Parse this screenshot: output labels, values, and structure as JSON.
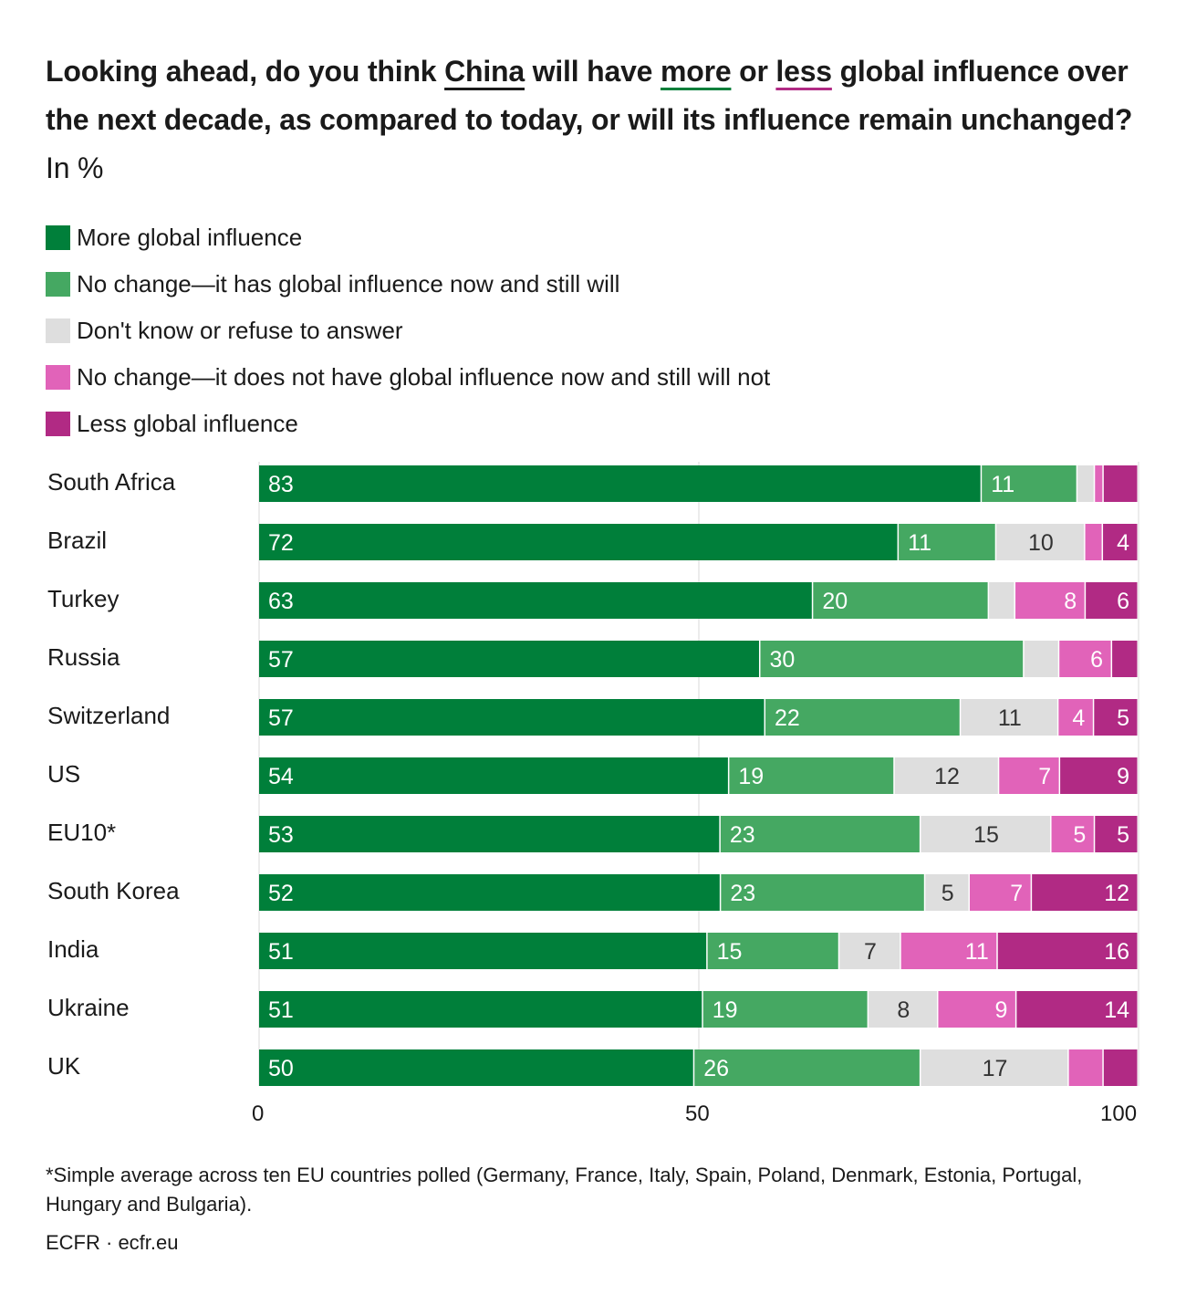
{
  "title": {
    "part1": "Looking ahead, do you think ",
    "china": "China",
    "part2": " will have ",
    "more": "more",
    "part3": " or ",
    "less": "less",
    "part4": " global influence over the next decade, as compared to today, or will its influence remain unchanged?",
    "unit": " In %"
  },
  "colors": {
    "more": "#007f3a",
    "no_change_has": "#45a862",
    "dont_know": "#dedede",
    "no_change_not": "#e163b9",
    "less": "#b12a84"
  },
  "legend": [
    {
      "label": "More global influence",
      "color": "#007f3a"
    },
    {
      "label": "No change—it has global influence now and still will",
      "color": "#45a862"
    },
    {
      "label": "Don't know or refuse to answer",
      "color": "#dedede"
    },
    {
      "label": "No change—it does not have global influence now and still will not",
      "color": "#e163b9"
    },
    {
      "label": "Less global influence",
      "color": "#b12a84"
    }
  ],
  "chart_data": {
    "type": "bar",
    "orientation": "horizontal",
    "stacked": true,
    "xlim": [
      0,
      100
    ],
    "xticks": [
      "0",
      "50",
      "100"
    ],
    "grid": true,
    "categories": [
      "South Africa",
      "Brazil",
      "Turkey",
      "Russia",
      "Switzerland",
      "US",
      "EU10*",
      "South Korea",
      "India",
      "Ukraine",
      "UK"
    ],
    "series": [
      {
        "name": "More global influence",
        "values": [
          83,
          72,
          63,
          57,
          57,
          54,
          53,
          52,
          51,
          51,
          50
        ]
      },
      {
        "name": "No change—it has global influence now and still will",
        "values": [
          11,
          11,
          20,
          30,
          22,
          19,
          23,
          23,
          15,
          19,
          26
        ]
      },
      {
        "name": "Don't know or refuse to answer",
        "values": [
          2,
          10,
          3,
          4,
          11,
          12,
          15,
          5,
          7,
          8,
          17
        ]
      },
      {
        "name": "No change—it does not have global influence now and still will not",
        "values": [
          1,
          2,
          8,
          6,
          4,
          7,
          5,
          7,
          11,
          9,
          4
        ]
      },
      {
        "name": "Less global influence",
        "values": [
          4,
          4,
          6,
          3,
          5,
          9,
          5,
          12,
          16,
          14,
          4
        ]
      }
    ],
    "labels": [
      [
        "83",
        "11",
        "",
        "",
        ""
      ],
      [
        "72",
        "11",
        "10",
        "",
        "4"
      ],
      [
        "63",
        "20",
        "",
        "8",
        "6"
      ],
      [
        "57",
        "30",
        "",
        "6",
        ""
      ],
      [
        "57",
        "22",
        "11",
        "4",
        "5"
      ],
      [
        "54",
        "19",
        "12",
        "7",
        "9"
      ],
      [
        "53",
        "23",
        "15",
        "5",
        "5"
      ],
      [
        "52",
        "23",
        "5",
        "7",
        "12"
      ],
      [
        "51",
        "15",
        "7",
        "11",
        "16"
      ],
      [
        "51",
        "19",
        "8",
        "9",
        "14"
      ],
      [
        "50",
        "26",
        "17",
        "",
        ""
      ]
    ]
  },
  "footnote": "*Simple average across ten EU countries polled (Germany, France, Italy, Spain, Poland, Denmark, Estonia, Portugal, Hungary and Bulgaria).",
  "source": "ECFR · ecfr.eu"
}
